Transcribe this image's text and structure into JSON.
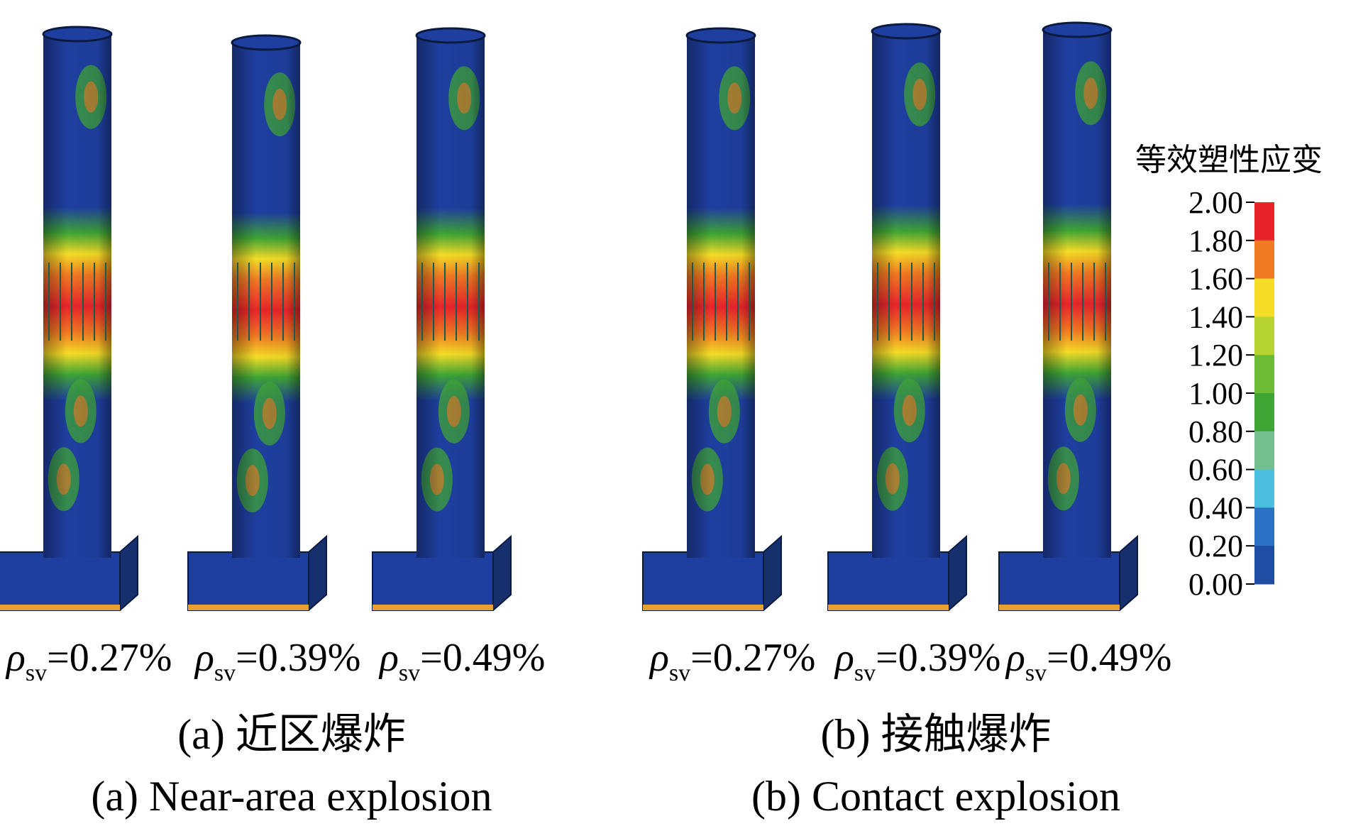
{
  "panels": [
    {
      "columns": [
        {
          "symbol": "ρ",
          "subscript": "sv",
          "value": "=0.27%"
        },
        {
          "symbol": "ρ",
          "subscript": "sv",
          "value": "=0.39%"
        },
        {
          "symbol": "ρ",
          "subscript": "sv",
          "value": "=0.49%"
        }
      ],
      "caption_cn": "(a) 近区爆炸",
      "caption_en": "(a) Near-area explosion"
    },
    {
      "columns": [
        {
          "symbol": "ρ",
          "subscript": "sv",
          "value": "=0.27%"
        },
        {
          "symbol": "ρ",
          "subscript": "sv",
          "value": "=0.39%"
        },
        {
          "symbol": "ρ",
          "subscript": "sv",
          "value": "=0.49%"
        }
      ],
      "caption_cn": "(b) 接触爆炸",
      "caption_en": "(b) Contact explosion"
    }
  ],
  "legend": {
    "title": "等效塑性应变",
    "labels": [
      "2.00",
      "1.80",
      "1.60",
      "1.40",
      "1.20",
      "1.00",
      "0.80",
      "0.60",
      "0.40",
      "0.20",
      "0.00"
    ],
    "colors": [
      "#e8242b",
      "#f07a22",
      "#f5dc26",
      "#b8d433",
      "#6dbb34",
      "#3fa535",
      "#73c08e",
      "#4cbfe0",
      "#2b72c4",
      "#1f4da3"
    ]
  }
}
